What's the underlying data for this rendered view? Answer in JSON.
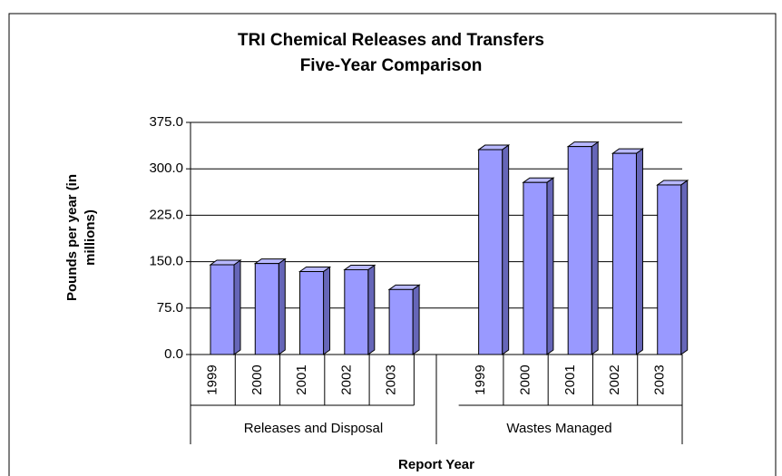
{
  "chart_data": {
    "type": "bar3d",
    "title": [
      "TRI Chemical Releases and Transfers",
      "Five-Year Comparison"
    ],
    "ylabel": [
      "Pounds per year (in",
      "millions)"
    ],
    "xlabel": "Report Year",
    "color": "#9999ff",
    "ylim": [
      0,
      375
    ],
    "yticks": [
      {
        "value": 0,
        "label": "0.0"
      },
      {
        "value": 75,
        "label": "75.0"
      },
      {
        "value": 150,
        "label": "150.0"
      },
      {
        "value": 225,
        "label": "225.0"
      },
      {
        "value": 300,
        "label": "300.0"
      },
      {
        "value": 375,
        "label": "375.0"
      }
    ],
    "grid": true,
    "groups": [
      {
        "name": "Releases and Disposal",
        "categories": [
          "1999",
          "2000",
          "2001",
          "2002",
          "2003"
        ],
        "values": [
          145,
          147,
          134,
          137,
          105
        ]
      },
      {
        "name": "Wastes Managed",
        "categories": [
          "1999",
          "2000",
          "2001",
          "2002",
          "2003"
        ],
        "values": [
          331,
          278,
          336,
          325,
          274
        ]
      }
    ]
  }
}
